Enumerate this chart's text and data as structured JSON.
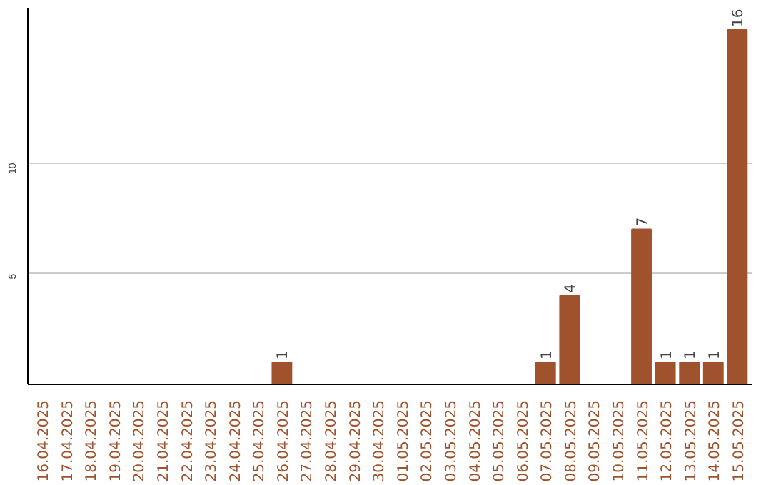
{
  "chart_data": {
    "type": "bar",
    "categories": [
      "16.04.2025",
      "17.04.2025",
      "18.04.2025",
      "19.04.2025",
      "20.04.2025",
      "21.04.2025",
      "22.04.2025",
      "23.04.2025",
      "24.04.2025",
      "25.04.2025",
      "26.04.2025",
      "27.04.2025",
      "28.04.2025",
      "29.04.2025",
      "30.04.2025",
      "01.05.2025",
      "02.05.2025",
      "03.05.2025",
      "04.05.2025",
      "05.05.2025",
      "06.05.2025",
      "07.05.2025",
      "08.05.2025",
      "09.05.2025",
      "10.05.2025",
      "11.05.2025",
      "12.05.2025",
      "13.05.2025",
      "14.05.2025",
      "15.05.2025"
    ],
    "values": [
      0,
      0,
      0,
      0,
      0,
      0,
      0,
      0,
      0,
      0,
      1,
      0,
      0,
      0,
      0,
      0,
      0,
      0,
      0,
      0,
      0,
      1,
      4,
      0,
      0,
      7,
      1,
      1,
      1,
      16
    ],
    "value_labels": [
      null,
      null,
      null,
      null,
      null,
      null,
      null,
      null,
      null,
      null,
      "1",
      null,
      null,
      null,
      null,
      null,
      null,
      null,
      null,
      null,
      null,
      "1",
      "4",
      null,
      null,
      "7",
      "1",
      "1",
      "1",
      "16"
    ],
    "color": "#a0522d",
    "ylim": [
      0,
      17
    ],
    "yticks": [
      5,
      10
    ],
    "grid": "y"
  }
}
